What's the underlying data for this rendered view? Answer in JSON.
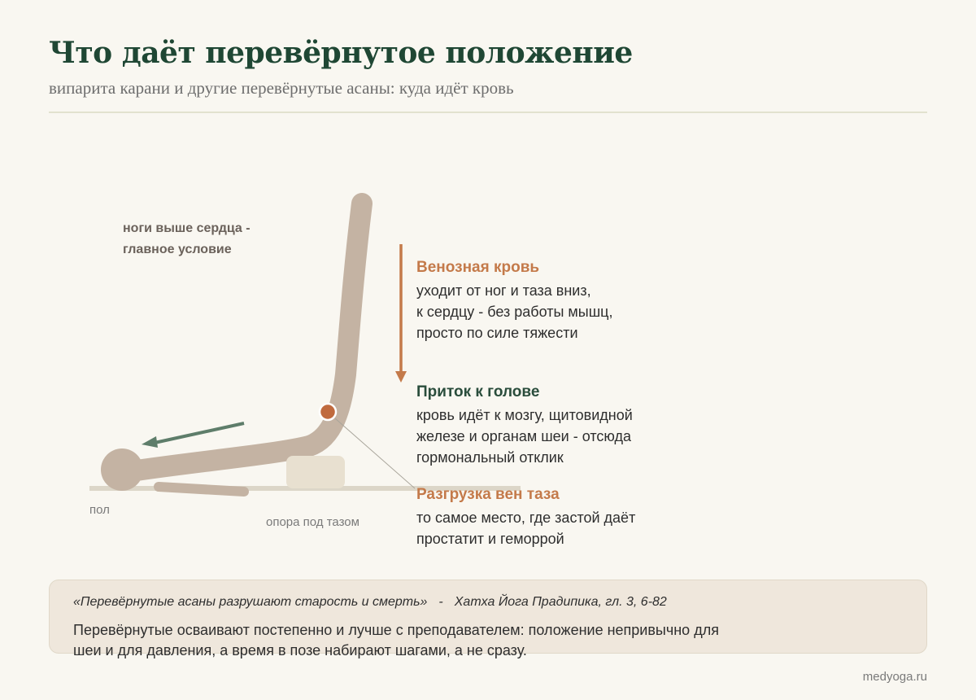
{
  "header": {
    "title": "Что даёт перевёрнутое положение",
    "subtitle": "випарита карани и другие перевёрнутые асаны: куда идёт кровь"
  },
  "figure": {
    "legs_label_line1": "ноги выше сердца -",
    "legs_label_line2": "главное условие",
    "floor_label": "пол",
    "support_label": "опора под тазом"
  },
  "blocks": [
    {
      "heading": "Венозная кровь",
      "body": "уходит от ног и таза вниз,\nк сердцу - без работы мышц,\nпросто по силе тяжести"
    },
    {
      "heading": "Приток к голове",
      "body": "кровь идёт к мозгу, щитовидной\nжелезе и органам шеи - отсюда\nгормональный отклик"
    },
    {
      "heading": "Разгрузка вен таза",
      "body": "то самое место, где застой даёт\nпростатит и геморрой"
    }
  ],
  "quote": {
    "text": "«Перевёрнутые асаны разрушают старость и смерть»",
    "dash": "-",
    "source": "Хатха Йога Прадипика, гл. 3, 6-82",
    "body": "Перевёрнутые осваивают постепенно и лучше с преподавателем: положение непривычно для шеи и для давления, а время в позе набирают шагами, а не сразу."
  },
  "footer": {
    "site": "medyoga.ru"
  },
  "colors": {
    "background": "#f9f7f1",
    "title": "#1f4734",
    "body_figure": "#c4b3a3",
    "support_block": "#e8e0d0",
    "floor": "#dcd6c8",
    "arrow_down": "#c47a4a",
    "arrow_head": "#5e7d6a",
    "marker": "#c06a3e",
    "quote_box": "#efe7dc"
  }
}
